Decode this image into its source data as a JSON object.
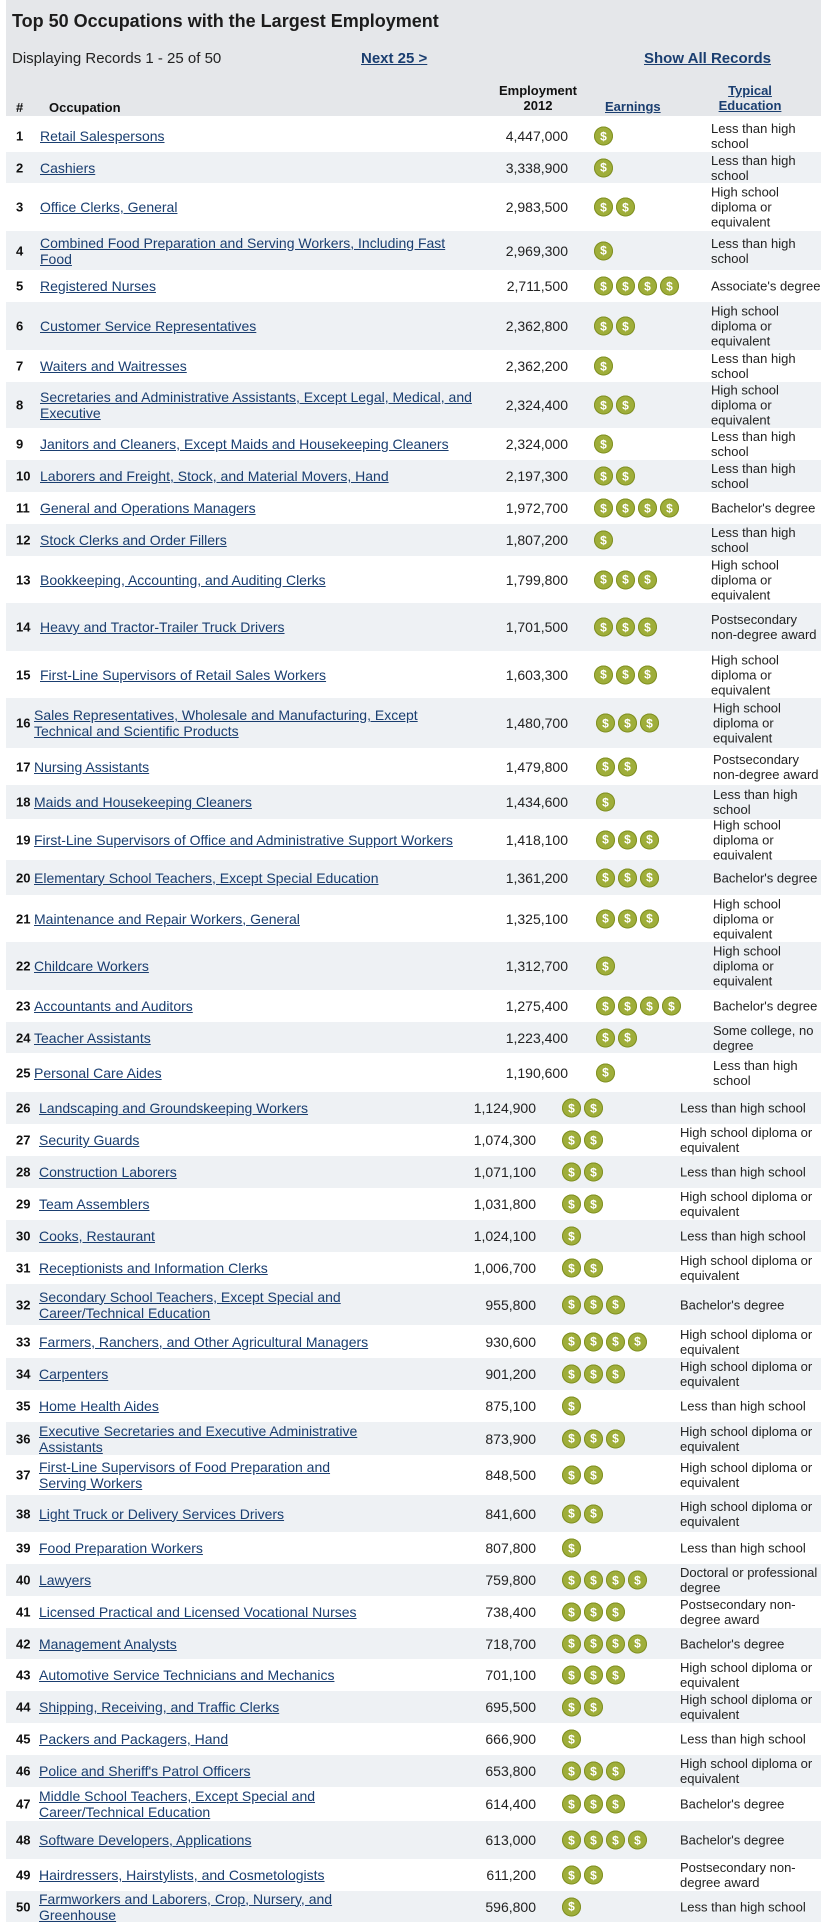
{
  "title": "Top 50 Occupations with the Largest Employment",
  "records_text": "Displaying Records 1 - 25 of 50",
  "next_label": "Next 25 >",
  "show_all_label": "Show All Records",
  "headers": {
    "num": "#",
    "occupation": "Occupation",
    "employment_line1": "Employment",
    "employment_line2": "2012",
    "earnings": "Earnings",
    "education_line1": "Typical",
    "education_line2": "Education"
  },
  "earnings_symbol": "$",
  "colors": {
    "coin": "#9fae3a",
    "link": "#1a3e70",
    "header_bg": "#e5e7ea",
    "row_alt": "#eef1f4"
  },
  "rows": [
    {
      "num": "1",
      "occupation": "Retail Salespersons",
      "employment": "4,447,000",
      "earnings": 1,
      "education": "Less than high school"
    },
    {
      "num": "2",
      "occupation": "Cashiers",
      "employment": "3,338,900",
      "earnings": 1,
      "education": "Less than high school"
    },
    {
      "num": "3",
      "occupation": "Office Clerks, General",
      "employment": "2,983,500",
      "earnings": 2,
      "education": "High school diploma or equivalent"
    },
    {
      "num": "4",
      "occupation": "Combined Food Preparation and Serving Workers, Including Fast Food",
      "employment": "2,969,300",
      "earnings": 1,
      "education": "Less than high school"
    },
    {
      "num": "5",
      "occupation": "Registered Nurses",
      "employment": "2,711,500",
      "earnings": 4,
      "education": "Associate's degree"
    },
    {
      "num": "6",
      "occupation": "Customer Service Representatives",
      "employment": "2,362,800",
      "earnings": 2,
      "education": "High school diploma or equivalent"
    },
    {
      "num": "7",
      "occupation": "Waiters and Waitresses",
      "employment": "2,362,200",
      "earnings": 1,
      "education": "Less than high school"
    },
    {
      "num": "8",
      "occupation": "Secretaries and Administrative Assistants, Except Legal, Medical, and Executive",
      "employment": "2,324,400",
      "earnings": 2,
      "education": "High school diploma or equivalent"
    },
    {
      "num": "9",
      "occupation": "Janitors and Cleaners, Except Maids and Housekeeping Cleaners",
      "employment": "2,324,000",
      "earnings": 1,
      "education": "Less than high school"
    },
    {
      "num": "10",
      "occupation": "Laborers and Freight, Stock, and Material Movers, Hand",
      "employment": "2,197,300",
      "earnings": 2,
      "education": "Less than high school"
    },
    {
      "num": "11",
      "occupation": "General and Operations Managers",
      "employment": "1,972,700",
      "earnings": 4,
      "education": "Bachelor's degree"
    },
    {
      "num": "12",
      "occupation": "Stock Clerks and Order Fillers",
      "employment": "1,807,200",
      "earnings": 1,
      "education": "Less than high school"
    },
    {
      "num": "13",
      "occupation": "Bookkeeping, Accounting, and Auditing Clerks",
      "employment": "1,799,800",
      "earnings": 3,
      "education": "High school diploma or equivalent"
    },
    {
      "num": "14",
      "occupation": "Heavy and Tractor-Trailer Truck Drivers",
      "employment": "1,701,500",
      "earnings": 3,
      "education": "Postsecondary non-degree award"
    },
    {
      "num": "15",
      "occupation": "First-Line Supervisors of Retail Sales Workers",
      "employment": "1,603,300",
      "earnings": 3,
      "education": "High school diploma or equivalent"
    },
    {
      "num": "16",
      "occupation": "Sales Representatives, Wholesale and Manufacturing, Except Technical and Scientific Products",
      "employment": "1,480,700",
      "earnings": 3,
      "education": "High school diploma or equivalent"
    },
    {
      "num": "17",
      "occupation": "Nursing Assistants",
      "employment": "1,479,800",
      "earnings": 2,
      "education": "Postsecondary non-degree award"
    },
    {
      "num": "18",
      "occupation": "Maids and Housekeeping Cleaners",
      "employment": "1,434,600",
      "earnings": 1,
      "education": "Less than high school"
    },
    {
      "num": "19",
      "occupation": "First-Line Supervisors of Office and Administrative Support Workers",
      "employment": "1,418,100",
      "earnings": 3,
      "education": "High school diploma or equivalent"
    },
    {
      "num": "20",
      "occupation": "Elementary School Teachers, Except Special Education",
      "employment": "1,361,200",
      "earnings": 3,
      "education": "Bachelor's degree"
    },
    {
      "num": "21",
      "occupation": "Maintenance and Repair Workers, General",
      "employment": "1,325,100",
      "earnings": 3,
      "education": "High school diploma or equivalent"
    },
    {
      "num": "22",
      "occupation": "Childcare Workers",
      "employment": "1,312,700",
      "earnings": 1,
      "education": "High school diploma or equivalent"
    },
    {
      "num": "23",
      "occupation": "Accountants and Auditors",
      "employment": "1,275,400",
      "earnings": 4,
      "education": "Bachelor's degree"
    },
    {
      "num": "24",
      "occupation": "Teacher Assistants",
      "employment": "1,223,400",
      "earnings": 2,
      "education": "Some college, no degree"
    },
    {
      "num": "25",
      "occupation": "Personal Care Aides",
      "employment": "1,190,600",
      "earnings": 1,
      "education": "Less than high school"
    },
    {
      "num": "26",
      "occupation": "Landscaping and Groundskeeping Workers",
      "employment": "1,124,900",
      "earnings": 2,
      "education": "Less than high school"
    },
    {
      "num": "27",
      "occupation": "Security Guards",
      "employment": "1,074,300",
      "earnings": 2,
      "education": "High school diploma or equivalent"
    },
    {
      "num": "28",
      "occupation": "Construction Laborers",
      "employment": "1,071,100",
      "earnings": 2,
      "education": "Less than high school"
    },
    {
      "num": "29",
      "occupation": "Team Assemblers",
      "employment": "1,031,800",
      "earnings": 2,
      "education": "High school diploma or equivalent"
    },
    {
      "num": "30",
      "occupation": "Cooks, Restaurant",
      "employment": "1,024,100",
      "earnings": 1,
      "education": "Less than high school"
    },
    {
      "num": "31",
      "occupation": "Receptionists and Information Clerks",
      "employment": "1,006,700",
      "earnings": 2,
      "education": "High school diploma or equivalent"
    },
    {
      "num": "32",
      "occupation": "Secondary School Teachers, Except Special and Career/Technical Education",
      "employment": "955,800",
      "earnings": 3,
      "education": "Bachelor's degree"
    },
    {
      "num": "33",
      "occupation": "Farmers, Ranchers, and Other Agricultural Managers",
      "employment": "930,600",
      "earnings": 4,
      "education": "High school diploma or equivalent"
    },
    {
      "num": "34",
      "occupation": "Carpenters",
      "employment": "901,200",
      "earnings": 3,
      "education": "High school diploma or equivalent"
    },
    {
      "num": "35",
      "occupation": "Home Health Aides",
      "employment": "875,100",
      "earnings": 1,
      "education": "Less than high school"
    },
    {
      "num": "36",
      "occupation": "Executive Secretaries and Executive Administrative Assistants",
      "employment": "873,900",
      "earnings": 3,
      "education": "High school diploma or equivalent"
    },
    {
      "num": "37",
      "occupation": "First-Line Supervisors of Food Preparation and Serving Workers",
      "employment": "848,500",
      "earnings": 2,
      "education": "High school diploma or equivalent"
    },
    {
      "num": "38",
      "occupation": "Light Truck or Delivery Services Drivers",
      "employment": "841,600",
      "earnings": 2,
      "education": "High school diploma or equivalent"
    },
    {
      "num": "39",
      "occupation": "Food Preparation Workers",
      "employment": "807,800",
      "earnings": 1,
      "education": "Less than high school"
    },
    {
      "num": "40",
      "occupation": "Lawyers",
      "employment": "759,800",
      "earnings": 4,
      "education": "Doctoral or professional degree"
    },
    {
      "num": "41",
      "occupation": "Licensed Practical and Licensed Vocational Nurses",
      "employment": "738,400",
      "earnings": 3,
      "education": "Postsecondary non-degree award"
    },
    {
      "num": "42",
      "occupation": "Management Analysts",
      "employment": "718,700",
      "earnings": 4,
      "education": "Bachelor's degree"
    },
    {
      "num": "43",
      "occupation": "Automotive Service Technicians and Mechanics",
      "employment": "701,100",
      "earnings": 3,
      "education": "High school diploma or equivalent"
    },
    {
      "num": "44",
      "occupation": "Shipping, Receiving, and Traffic Clerks",
      "employment": "695,500",
      "earnings": 2,
      "education": "High school diploma or equivalent"
    },
    {
      "num": "45",
      "occupation": "Packers and Packagers, Hand",
      "employment": "666,900",
      "earnings": 1,
      "education": "Less than high school"
    },
    {
      "num": "46",
      "occupation": "Police and Sheriff's Patrol Officers",
      "employment": "653,800",
      "earnings": 3,
      "education": "High school diploma or equivalent"
    },
    {
      "num": "47",
      "occupation": "Middle School Teachers, Except Special and Career/Technical Education",
      "employment": "614,400",
      "earnings": 3,
      "education": "Bachelor's degree"
    },
    {
      "num": "48",
      "occupation": "Software Developers, Applications",
      "employment": "613,000",
      "earnings": 4,
      "education": "Bachelor's degree"
    },
    {
      "num": "49",
      "occupation": "Hairdressers, Hairstylists, and Cosmetologists",
      "employment": "611,200",
      "earnings": 2,
      "education": "Postsecondary non-degree award"
    },
    {
      "num": "50",
      "occupation": "Farmworkers and Laborers, Crop, Nursery, and Greenhouse",
      "employment": "596,800",
      "earnings": 1,
      "education": "Less than high school"
    }
  ]
}
